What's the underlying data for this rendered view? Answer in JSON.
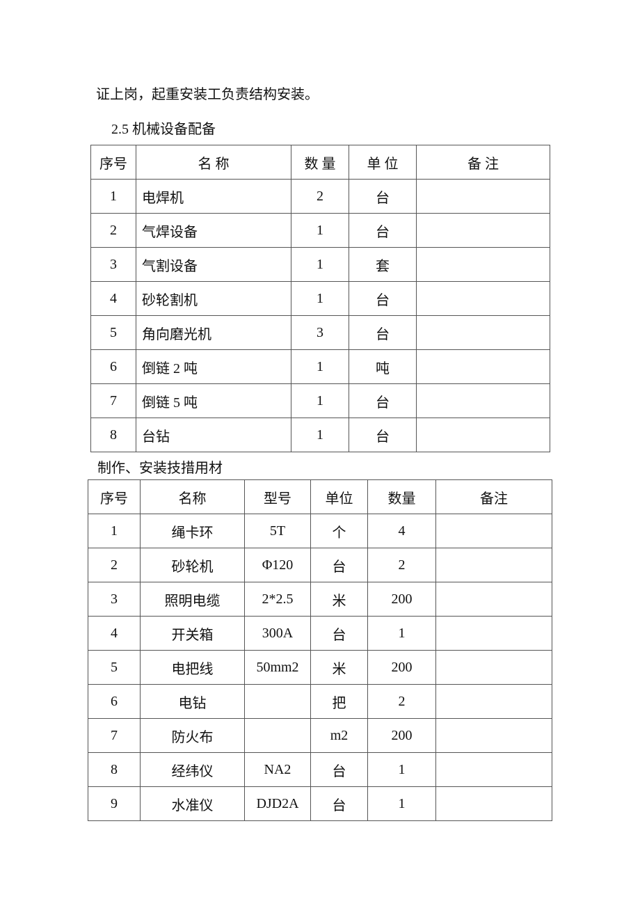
{
  "intro_line": "证上岗，起重安装工负责结构安装。",
  "section1": {
    "heading": "2.5 机械设备配备",
    "headers": [
      "序号",
      "名  称",
      "数 量",
      "单 位",
      "备  注"
    ],
    "rows": [
      [
        "1",
        "电焊机",
        "2",
        "台",
        ""
      ],
      [
        "2",
        "气焊设备",
        "1",
        "台",
        ""
      ],
      [
        "3",
        "气割设备",
        "1",
        "套",
        ""
      ],
      [
        "4",
        "砂轮割机",
        "1",
        "台",
        ""
      ],
      [
        "5",
        "角向磨光机",
        "3",
        "台",
        ""
      ],
      [
        "6",
        "倒链 2 吨",
        "1",
        "吨",
        ""
      ],
      [
        "7",
        "倒链 5 吨",
        "1",
        "台",
        ""
      ],
      [
        "8",
        "台钻",
        "1",
        "台",
        ""
      ]
    ]
  },
  "section2": {
    "heading": "制作、安装技措用材",
    "headers": [
      "序号",
      "名称",
      "型号",
      "单位",
      "数量",
      "备注"
    ],
    "rows": [
      [
        "1",
        "绳卡环",
        "5T",
        "个",
        "4",
        ""
      ],
      [
        "2",
        "砂轮机",
        "Φ120",
        "台",
        "2",
        ""
      ],
      [
        "3",
        "照明电缆",
        "2*2.5",
        "米",
        "200",
        ""
      ],
      [
        "4",
        "开关箱",
        "300A",
        "台",
        "1",
        ""
      ],
      [
        "5",
        "电把线",
        "50mm2",
        "米",
        "200",
        ""
      ],
      [
        "6",
        "电钻",
        "",
        "把",
        "2",
        ""
      ],
      [
        "7",
        "防火布",
        "",
        "m2",
        "200",
        ""
      ],
      [
        "8",
        "经纬仪",
        "NA2",
        "台",
        "1",
        ""
      ],
      [
        "9",
        "水准仪",
        "DJD2A",
        "台",
        "1",
        ""
      ]
    ]
  }
}
